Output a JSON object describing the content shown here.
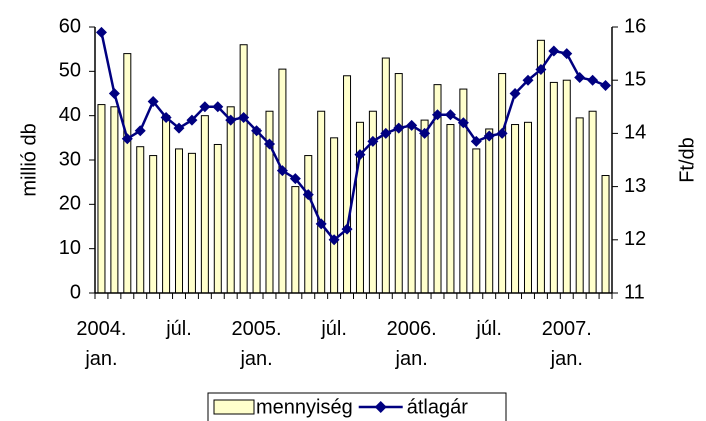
{
  "chart_data": {
    "type": "bar_line",
    "y_label": "millió db",
    "y2_label": "Ft/db",
    "categories": [
      "2004.\njan.",
      null,
      null,
      null,
      null,
      null,
      "júl.",
      null,
      null,
      null,
      null,
      null,
      "2005.\njan.",
      null,
      null,
      null,
      null,
      null,
      "júl.",
      null,
      null,
      null,
      null,
      null,
      "2006.\njan.",
      null,
      null,
      null,
      null,
      null,
      "júl.",
      null,
      null,
      null,
      null,
      null,
      "2007.\njan.",
      null,
      null,
      null
    ],
    "series": [
      {
        "name": "mennyiség",
        "type": "bar",
        "color": "#ffffcc",
        "edge_color": "#000000",
        "values": [
          42.5,
          42,
          54,
          33,
          31,
          40,
          32.5,
          31.5,
          40,
          33.5,
          42,
          56,
          37,
          41,
          50.5,
          24,
          31,
          41,
          35,
          49,
          38.5,
          41,
          53,
          49.5,
          38,
          39,
          47,
          38,
          46,
          32.5,
          37,
          49.5,
          38,
          38.5,
          57,
          47.5,
          48,
          39.5,
          41,
          26.5
        ]
      },
      {
        "name": "átlagár",
        "type": "line",
        "axis": "y2",
        "color": "#000080",
        "values": [
          15.9,
          14.75,
          13.9,
          14.05,
          14.6,
          14.3,
          14.1,
          14.25,
          14.5,
          14.5,
          14.25,
          14.3,
          14.05,
          13.8,
          13.3,
          13.15,
          12.85,
          12.3,
          12.0,
          12.2,
          13.6,
          13.85,
          14.0,
          14.1,
          14.15,
          14.0,
          14.35,
          14.35,
          14.2,
          13.85,
          13.95,
          14.0,
          14.75,
          15.0,
          15.2,
          15.55,
          15.5,
          15.05,
          15.0,
          14.9
        ]
      }
    ],
    "ylim": [
      0,
      60
    ],
    "yticks": [
      0,
      10,
      20,
      30,
      40,
      50,
      60
    ],
    "y2lim": [
      11,
      16
    ],
    "y2ticks": [
      11,
      12,
      13,
      14,
      15,
      16
    ],
    "grid": false,
    "legend": "bottom"
  }
}
